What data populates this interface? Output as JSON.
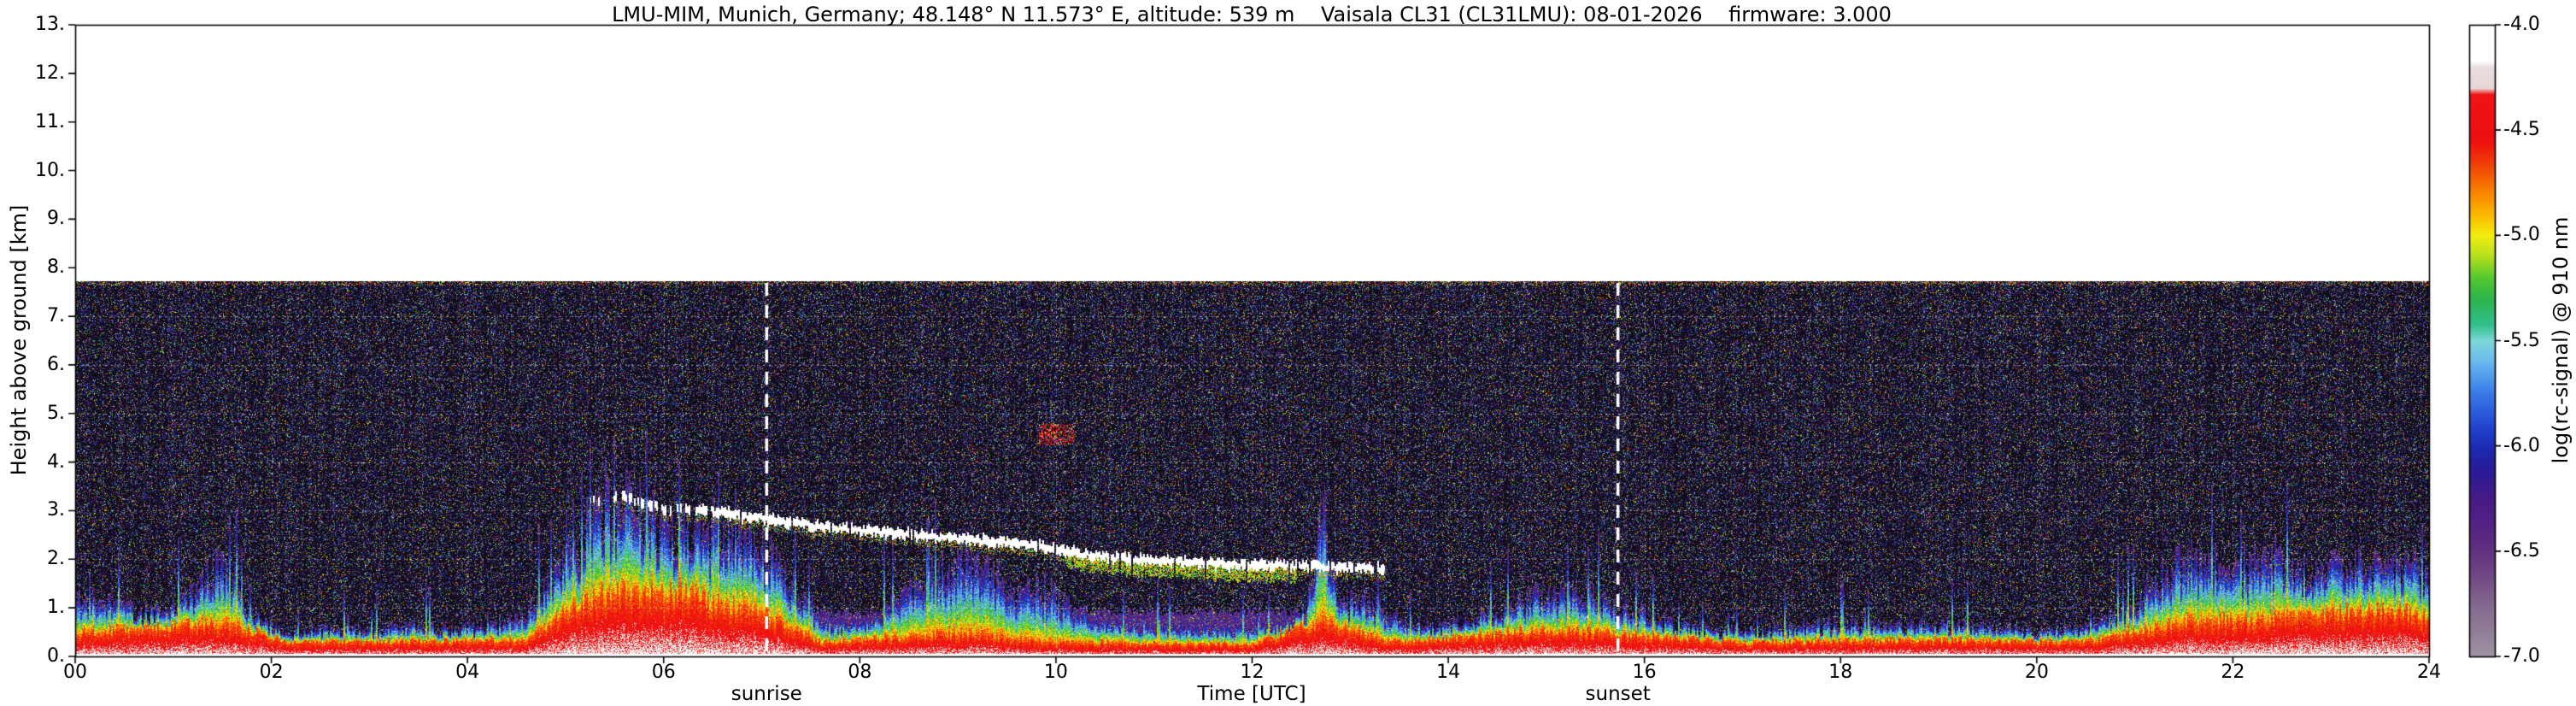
{
  "chart_data": {
    "type": "heatmap",
    "title": "LMU-MIM, Munich, Germany; 48.148° N 11.573° E, altitude: 539 m    Vaisala CL31 (CL31LMU): 08-01-2026    firmware: 3.000",
    "xlabel": "Time [UTC]",
    "ylabel": "Height above ground [km]",
    "xlim": [
      0,
      24
    ],
    "ylim": [
      0,
      13
    ],
    "data_top_km": 7.73,
    "x_ticks": [
      {
        "v": 0,
        "label": "00"
      },
      {
        "v": 2,
        "label": "02"
      },
      {
        "v": 4,
        "label": "04"
      },
      {
        "v": 6,
        "label": "06"
      },
      {
        "v": 8,
        "label": "08"
      },
      {
        "v": 10,
        "label": "10"
      },
      {
        "v": 12,
        "label": "12"
      },
      {
        "v": 14,
        "label": "14"
      },
      {
        "v": 16,
        "label": "16"
      },
      {
        "v": 18,
        "label": "18"
      },
      {
        "v": 20,
        "label": "20"
      },
      {
        "v": 22,
        "label": "22"
      },
      {
        "v": 24,
        "label": "24"
      }
    ],
    "y_ticks": [
      {
        "v": 0,
        "label": "0."
      },
      {
        "v": 1,
        "label": "1."
      },
      {
        "v": 2,
        "label": "2."
      },
      {
        "v": 3,
        "label": "3."
      },
      {
        "v": 4,
        "label": "4."
      },
      {
        "v": 5,
        "label": "5."
      },
      {
        "v": 6,
        "label": "6."
      },
      {
        "v": 7,
        "label": "7."
      },
      {
        "v": 8,
        "label": "8."
      },
      {
        "v": 9,
        "label": "9."
      },
      {
        "v": 10,
        "label": "10."
      },
      {
        "v": 11,
        "label": "11."
      },
      {
        "v": 12,
        "label": "12."
      },
      {
        "v": 13,
        "label": "13."
      }
    ],
    "grid": {
      "x_hours": [
        2,
        4,
        6,
        8,
        10,
        12,
        14,
        16,
        18,
        20,
        22
      ],
      "y_km": [
        1,
        2,
        3,
        4,
        5,
        6,
        7
      ]
    },
    "annotations": [
      {
        "label": "sunrise",
        "t": 7.05
      },
      {
        "label": "sunset",
        "t": 15.73
      }
    ],
    "colorbar": {
      "label": "log(rc-signal) @ 910 nm",
      "range": [
        -7.0,
        -4.0
      ],
      "ticks": [
        {
          "v": -4.0,
          "label": "-4.0"
        },
        {
          "v": -4.5,
          "label": "-4.5"
        },
        {
          "v": -5.0,
          "label": "-5.0"
        },
        {
          "v": -5.5,
          "label": "-5.5"
        },
        {
          "v": -6.0,
          "label": "-6.0"
        },
        {
          "v": -6.5,
          "label": "-6.5"
        },
        {
          "v": -7.0,
          "label": "-7.0"
        }
      ],
      "stops": [
        [
          -7.0,
          "#a094a4"
        ],
        [
          -6.9,
          "#948299"
        ],
        [
          -6.75,
          "#83688f"
        ],
        [
          -6.6,
          "#6f4584"
        ],
        [
          -6.45,
          "#5c2a80"
        ],
        [
          -6.25,
          "#471a86"
        ],
        [
          -6.12,
          "#2a1a96"
        ],
        [
          -6.0,
          "#1c2cb4"
        ],
        [
          -5.9,
          "#2347d2"
        ],
        [
          -5.75,
          "#3a7ae8"
        ],
        [
          -5.6,
          "#6ab8f0"
        ],
        [
          -5.5,
          "#7fd8d8"
        ],
        [
          -5.42,
          "#2fc08a"
        ],
        [
          -5.3,
          "#2eb44b"
        ],
        [
          -5.2,
          "#56c832"
        ],
        [
          -5.1,
          "#b4e01e"
        ],
        [
          -5.0,
          "#f4ee11"
        ],
        [
          -4.9,
          "#fcb800"
        ],
        [
          -4.78,
          "#f87e00"
        ],
        [
          -4.65,
          "#f03a0a"
        ],
        [
          -4.55,
          "#ee1010"
        ],
        [
          -4.33,
          "#f01414"
        ],
        [
          -4.3,
          "#e8d6d6"
        ],
        [
          -4.2,
          "#eadfdf"
        ],
        [
          -4.17,
          "#ffffff"
        ],
        [
          -4.0,
          "#ffffff"
        ]
      ]
    },
    "series": {
      "surface_layer_top_km": {
        "x": [
          0,
          0.4,
          0.8,
          1.2,
          1.5,
          1.8,
          2.2,
          2.6,
          3.0,
          3.4,
          3.8,
          4.2,
          4.6,
          5.0,
          5.3,
          5.6,
          5.9,
          6.2,
          6.6,
          7.0,
          7.3,
          7.6,
          8.0,
          8.4,
          8.7,
          9.0,
          9.3,
          9.6,
          9.9,
          10.2,
          10.6,
          11.0,
          11.5,
          12.0,
          12.4,
          12.55,
          12.72,
          12.9,
          13.1,
          13.4,
          13.8,
          14.2,
          14.6,
          15.0,
          15.4,
          15.8,
          16.2,
          16.6,
          17.0,
          17.5,
          18.0,
          18.5,
          19.0,
          19.5,
          20.0,
          20.4,
          20.8,
          21.2,
          21.6,
          22.0,
          22.4,
          22.8,
          23.2,
          23.6,
          24
        ],
        "y": [
          1.25,
          1.0,
          0.85,
          1.3,
          1.95,
          0.8,
          0.45,
          0.55,
          0.5,
          0.65,
          0.55,
          0.6,
          0.9,
          1.9,
          2.9,
          3.1,
          2.7,
          2.5,
          2.6,
          2.2,
          1.4,
          0.8,
          0.6,
          1.2,
          1.7,
          1.9,
          1.7,
          1.3,
          1.4,
          0.9,
          0.7,
          0.6,
          0.6,
          0.55,
          0.7,
          0.9,
          3.0,
          1.0,
          1.2,
          0.8,
          0.6,
          0.7,
          1.0,
          1.3,
          1.25,
          1.0,
          0.7,
          0.55,
          0.5,
          0.6,
          0.65,
          0.6,
          0.65,
          0.6,
          0.5,
          0.55,
          0.8,
          1.5,
          2.1,
          1.8,
          2.0,
          1.7,
          1.85,
          1.95,
          1.7
        ]
      },
      "surface_red_top_km": {
        "x": [
          0,
          1.5,
          2.2,
          4.6,
          5.2,
          6.0,
          7.0,
          7.6,
          8.4,
          9.0,
          10.0,
          12.0,
          12.72,
          13.4,
          14.4,
          15.0,
          16.0,
          17.0,
          19.0,
          20.5,
          21.5,
          22.5,
          23.5,
          24
        ],
        "y": [
          0.5,
          0.7,
          0.3,
          0.35,
          1.2,
          1.4,
          0.9,
          0.3,
          0.4,
          0.5,
          0.3,
          0.25,
          0.8,
          0.3,
          0.45,
          0.55,
          0.45,
          0.3,
          0.35,
          0.3,
          0.7,
          0.8,
          0.95,
          0.85
        ]
      },
      "cloud_base_km": {
        "x": [
          5.3,
          5.6,
          6.0,
          6.5,
          7.0,
          7.5,
          8.0,
          8.6,
          9.2,
          9.8,
          10.3,
          10.8,
          11.3,
          11.8,
          12.3,
          12.8,
          13.3
        ],
        "y": [
          3.2,
          3.3,
          3.05,
          3.0,
          2.85,
          2.7,
          2.6,
          2.5,
          2.4,
          2.3,
          2.1,
          2.0,
          1.95,
          1.9,
          1.88,
          1.85,
          1.82
        ]
      },
      "mixed_layer_top_km": {
        "x": [
          6.8,
          7.2,
          7.6,
          8.5,
          10.0,
          12.0,
          12.9,
          13.3,
          13.9,
          14.0
        ],
        "y": [
          0.05,
          0.7,
          0.92,
          0.95,
          0.95,
          0.95,
          0.9,
          0.8,
          0.1,
          0.0
        ]
      },
      "cloud_interval_h": [
        5.25,
        13.35
      ],
      "thick_band_h": [
        10.1,
        12.45
      ],
      "high_cloud_patch": {
        "t": [
          9.82,
          10.18
        ],
        "h": [
          4.35,
          4.8
        ]
      },
      "plume_t": [
        12.62,
        12.86
      ]
    }
  }
}
